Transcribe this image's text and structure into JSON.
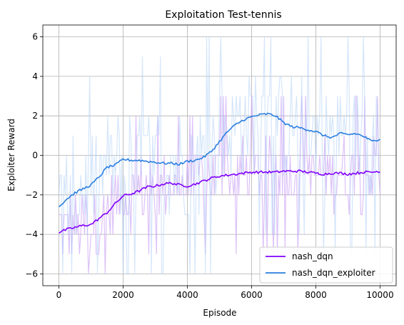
{
  "chart_data": {
    "type": "line",
    "title": "Exploitation Test-tennis",
    "xlabel": "Episode",
    "ylabel": "Exploiter Reward",
    "xlim": [
      -500,
      10500
    ],
    "ylim": [
      -6.6,
      6.6
    ],
    "xticks": [
      0,
      2000,
      4000,
      6000,
      8000,
      10000
    ],
    "xtick_labels": [
      "0",
      "2000",
      "4000",
      "6000",
      "8000",
      "10000"
    ],
    "yticks": [
      -6,
      -4,
      -2,
      0,
      2,
      4,
      6
    ],
    "ytick_labels": [
      "−6",
      "−4",
      "−2",
      "0",
      "2",
      "4",
      "6"
    ],
    "grid": true,
    "legend_position": "lower-right",
    "series": [
      {
        "name": "nash_dqn",
        "color": "#7f00ff",
        "raw_color": "#cfa8f5",
        "x": [
          0,
          250,
          500,
          750,
          1000,
          1250,
          1500,
          1750,
          2000,
          2250,
          2500,
          2750,
          3000,
          3250,
          3500,
          3750,
          4000,
          4250,
          4500,
          4750,
          5000,
          5250,
          5500,
          5750,
          6000,
          6250,
          6500,
          6750,
          7000,
          7250,
          7500,
          7750,
          8000,
          8250,
          8500,
          8750,
          9000,
          9250,
          9500,
          9750,
          10000
        ],
        "values": [
          -3.9,
          -3.75,
          -3.65,
          -3.55,
          -3.5,
          -3.2,
          -2.9,
          -2.45,
          -2.05,
          -1.95,
          -1.8,
          -1.6,
          -1.55,
          -1.45,
          -1.4,
          -1.5,
          -1.55,
          -1.45,
          -1.3,
          -1.15,
          -1.05,
          -1.0,
          -0.95,
          -0.9,
          -0.85,
          -0.85,
          -0.85,
          -0.85,
          -0.8,
          -0.8,
          -0.8,
          -0.85,
          -0.9,
          -0.95,
          -0.9,
          -0.9,
          -0.95,
          -0.9,
          -0.85,
          -0.85,
          -0.8
        ]
      },
      {
        "name": "nash_dqn_exploiter",
        "color": "#2b7fe0",
        "raw_color": "#b3d2f7",
        "x": [
          0,
          250,
          500,
          750,
          1000,
          1250,
          1500,
          1750,
          2000,
          2250,
          2500,
          2750,
          3000,
          3250,
          3500,
          3750,
          4000,
          4250,
          4500,
          4750,
          5000,
          5250,
          5500,
          5750,
          6000,
          6250,
          6500,
          6750,
          7000,
          7250,
          7500,
          7750,
          8000,
          8250,
          8500,
          8750,
          9000,
          9250,
          9500,
          9750,
          10000
        ],
        "values": [
          -2.6,
          -2.2,
          -1.9,
          -1.7,
          -1.5,
          -1.1,
          -0.6,
          -0.5,
          -0.2,
          -0.25,
          -0.25,
          -0.3,
          -0.35,
          -0.4,
          -0.4,
          -0.45,
          -0.3,
          -0.25,
          -0.1,
          0.2,
          0.7,
          1.2,
          1.55,
          1.8,
          1.95,
          2.05,
          2.1,
          2.0,
          1.65,
          1.45,
          1.4,
          1.3,
          1.2,
          1.0,
          0.9,
          1.1,
          1.05,
          1.1,
          0.95,
          0.7,
          0.85
        ]
      }
    ]
  }
}
